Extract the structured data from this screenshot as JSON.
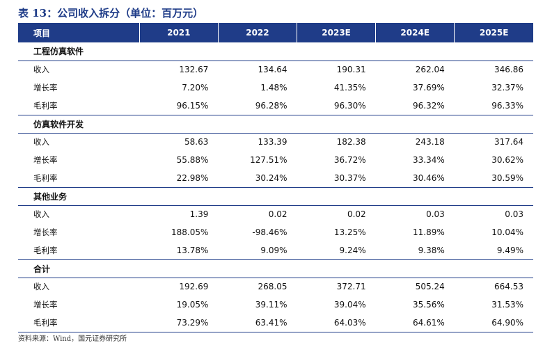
{
  "title": "表 13：公司收入拆分（单位：百万元）",
  "header": {
    "item_label": "项目",
    "years": [
      "2021",
      "2022",
      "2023E",
      "2024E",
      "2025E"
    ]
  },
  "sections": [
    {
      "name": "工程仿真软件",
      "rows": [
        {
          "label": "收入",
          "values": [
            "132.67",
            "134.64",
            "190.31",
            "262.04",
            "346.86"
          ]
        },
        {
          "label": "增长率",
          "values": [
            "7.20%",
            "1.48%",
            "41.35%",
            "37.69%",
            "32.37%"
          ]
        },
        {
          "label": "毛利率",
          "values": [
            "96.15%",
            "96.28%",
            "96.30%",
            "96.32%",
            "96.33%"
          ]
        }
      ]
    },
    {
      "name": "仿真软件开发",
      "rows": [
        {
          "label": "收入",
          "values": [
            "58.63",
            "133.39",
            "182.38",
            "243.18",
            "317.64"
          ]
        },
        {
          "label": "增长率",
          "values": [
            "55.88%",
            "127.51%",
            "36.72%",
            "33.34%",
            "30.62%"
          ]
        },
        {
          "label": "毛利率",
          "values": [
            "22.98%",
            "30.24%",
            "30.37%",
            "30.46%",
            "30.59%"
          ]
        }
      ]
    },
    {
      "name": "其他业务",
      "rows": [
        {
          "label": "收入",
          "values": [
            "1.39",
            "0.02",
            "0.02",
            "0.03",
            "0.03"
          ]
        },
        {
          "label": "增长率",
          "values": [
            "188.05%",
            "-98.46%",
            "13.25%",
            "11.89%",
            "10.04%"
          ]
        },
        {
          "label": "毛利率",
          "values": [
            "13.78%",
            "9.09%",
            "9.24%",
            "9.38%",
            "9.49%"
          ]
        }
      ]
    },
    {
      "name": "合计",
      "rows": [
        {
          "label": "收入",
          "values": [
            "192.69",
            "268.05",
            "372.71",
            "505.24",
            "664.53"
          ]
        },
        {
          "label": "增长率",
          "values": [
            "19.05%",
            "39.11%",
            "39.04%",
            "35.56%",
            "31.53%"
          ]
        },
        {
          "label": "毛利率",
          "values": [
            "73.29%",
            "63.41%",
            "64.03%",
            "64.61%",
            "64.90%"
          ]
        }
      ]
    }
  ],
  "source": "资料来源：Wind，国元证券研究所",
  "colors": {
    "header_bg": "#1f3c88",
    "title": "#1f3c88",
    "rule": "#1f3c88"
  }
}
